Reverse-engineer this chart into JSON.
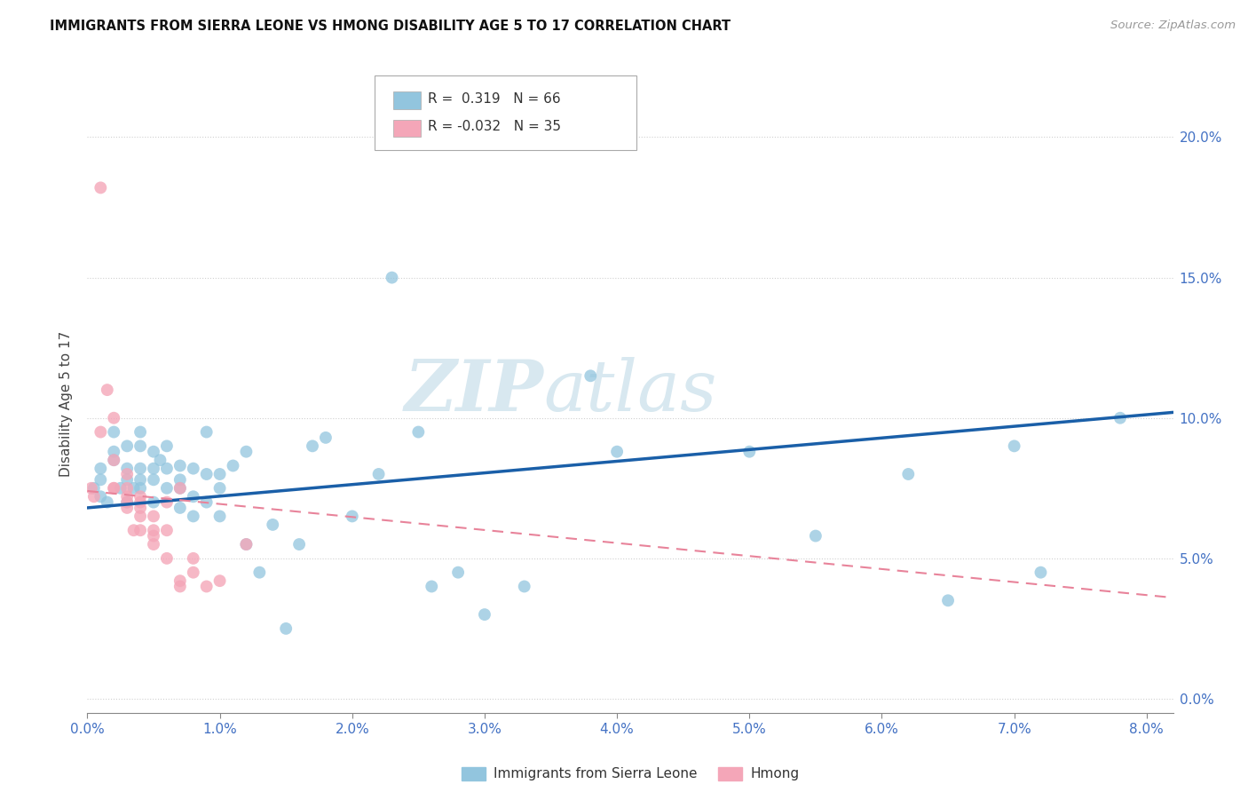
{
  "title": "IMMIGRANTS FROM SIERRA LEONE VS HMONG DISABILITY AGE 5 TO 17 CORRELATION CHART",
  "source": "Source: ZipAtlas.com",
  "ylabel": "Disability Age 5 to 17",
  "legend1_r": "0.319",
  "legend1_n": "66",
  "legend2_r": "-0.032",
  "legend2_n": "35",
  "color_blue": "#92c5de",
  "color_pink": "#f4a6b8",
  "line_blue": "#1a5fa8",
  "line_pink": "#e8839a",
  "watermark_zip": "ZIP",
  "watermark_atlas": "atlas",
  "xlim": [
    0.0,
    0.082
  ],
  "ylim": [
    -0.005,
    0.215
  ],
  "x_tick_vals": [
    0.0,
    0.01,
    0.02,
    0.03,
    0.04,
    0.05,
    0.06,
    0.07,
    0.08
  ],
  "y_tick_vals": [
    0.0,
    0.05,
    0.1,
    0.15,
    0.2
  ],
  "sl_trend_x0": 0.0,
  "sl_trend_y0": 0.068,
  "sl_trend_x1": 0.082,
  "sl_trend_y1": 0.102,
  "hmong_trend_x0": 0.0,
  "hmong_trend_y0": 0.074,
  "hmong_trend_x1": 0.082,
  "hmong_trend_y1": 0.036,
  "sierra_leone_x": [
    0.0005,
    0.001,
    0.001,
    0.001,
    0.0015,
    0.002,
    0.002,
    0.002,
    0.0025,
    0.003,
    0.003,
    0.003,
    0.003,
    0.0035,
    0.004,
    0.004,
    0.004,
    0.004,
    0.004,
    0.005,
    0.005,
    0.005,
    0.005,
    0.0055,
    0.006,
    0.006,
    0.006,
    0.007,
    0.007,
    0.007,
    0.007,
    0.008,
    0.008,
    0.008,
    0.009,
    0.009,
    0.009,
    0.01,
    0.01,
    0.01,
    0.011,
    0.012,
    0.012,
    0.013,
    0.014,
    0.015,
    0.016,
    0.017,
    0.018,
    0.02,
    0.022,
    0.023,
    0.025,
    0.026,
    0.028,
    0.03,
    0.033,
    0.038,
    0.04,
    0.05,
    0.055,
    0.062,
    0.065,
    0.07,
    0.072,
    0.078
  ],
  "sierra_leone_y": [
    0.075,
    0.072,
    0.078,
    0.082,
    0.07,
    0.085,
    0.088,
    0.095,
    0.075,
    0.07,
    0.078,
    0.082,
    0.09,
    0.075,
    0.075,
    0.082,
    0.078,
    0.09,
    0.095,
    0.07,
    0.078,
    0.082,
    0.088,
    0.085,
    0.075,
    0.082,
    0.09,
    0.075,
    0.078,
    0.083,
    0.068,
    0.065,
    0.082,
    0.072,
    0.07,
    0.08,
    0.095,
    0.075,
    0.08,
    0.065,
    0.083,
    0.088,
    0.055,
    0.045,
    0.062,
    0.025,
    0.055,
    0.09,
    0.093,
    0.065,
    0.08,
    0.15,
    0.095,
    0.04,
    0.045,
    0.03,
    0.04,
    0.115,
    0.088,
    0.088,
    0.058,
    0.08,
    0.035,
    0.09,
    0.045,
    0.1
  ],
  "hmong_x": [
    0.0003,
    0.0005,
    0.001,
    0.001,
    0.0015,
    0.002,
    0.002,
    0.002,
    0.002,
    0.003,
    0.003,
    0.003,
    0.003,
    0.003,
    0.0035,
    0.004,
    0.004,
    0.004,
    0.004,
    0.004,
    0.005,
    0.005,
    0.005,
    0.005,
    0.006,
    0.006,
    0.006,
    0.007,
    0.007,
    0.007,
    0.008,
    0.008,
    0.009,
    0.01,
    0.012
  ],
  "hmong_y": [
    0.075,
    0.072,
    0.182,
    0.095,
    0.11,
    0.1,
    0.085,
    0.075,
    0.075,
    0.08,
    0.07,
    0.068,
    0.072,
    0.075,
    0.06,
    0.07,
    0.065,
    0.06,
    0.068,
    0.072,
    0.065,
    0.058,
    0.055,
    0.06,
    0.07,
    0.06,
    0.05,
    0.075,
    0.04,
    0.042,
    0.05,
    0.045,
    0.04,
    0.042,
    0.055
  ]
}
